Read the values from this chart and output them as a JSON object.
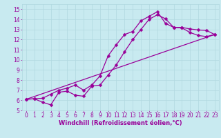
{
  "background_color": "#c8eaf0",
  "grid_color": "#b0d8e0",
  "line_color": "#990099",
  "text_color": "#990099",
  "xlabel": "Windchill (Refroidissement éolien,°C)",
  "xlim": [
    -0.5,
    23.5
  ],
  "ylim": [
    5,
    15.5
  ],
  "xticks": [
    0,
    1,
    2,
    3,
    4,
    5,
    6,
    7,
    8,
    9,
    10,
    11,
    12,
    13,
    14,
    15,
    16,
    17,
    18,
    19,
    20,
    21,
    22,
    23
  ],
  "yticks": [
    5,
    6,
    7,
    8,
    9,
    10,
    11,
    12,
    13,
    14,
    15
  ],
  "line1_x": [
    0,
    1,
    2,
    3,
    4,
    5,
    6,
    7,
    8,
    9,
    10,
    11,
    12,
    13,
    14,
    15,
    16,
    17,
    18,
    19,
    20,
    21,
    22,
    23
  ],
  "line1_y": [
    6.1,
    6.15,
    6.2,
    6.6,
    7.0,
    7.2,
    7.5,
    7.0,
    7.5,
    8.4,
    10.4,
    11.5,
    12.5,
    12.8,
    13.85,
    14.3,
    14.75,
    13.6,
    13.2,
    13.2,
    13.05,
    12.95,
    12.9,
    12.5
  ],
  "line2_x": [
    0,
    1,
    2,
    3,
    4,
    5,
    6,
    7,
    8,
    9,
    10,
    11,
    12,
    13,
    14,
    15,
    16,
    17,
    18,
    19,
    20,
    21,
    22,
    23
  ],
  "line2_y": [
    6.1,
    6.15,
    5.8,
    5.55,
    6.8,
    6.9,
    6.5,
    6.4,
    7.4,
    7.5,
    8.5,
    9.5,
    10.8,
    12.0,
    13.0,
    14.0,
    14.45,
    14.05,
    13.2,
    13.15,
    12.7,
    12.4,
    12.3,
    12.5
  ],
  "line3_x": [
    0,
    23
  ],
  "line3_y": [
    6.1,
    12.5
  ],
  "markersize": 2.5,
  "linewidth": 0.9,
  "tick_fontsize": 5.5,
  "xlabel_fontsize": 6.0
}
